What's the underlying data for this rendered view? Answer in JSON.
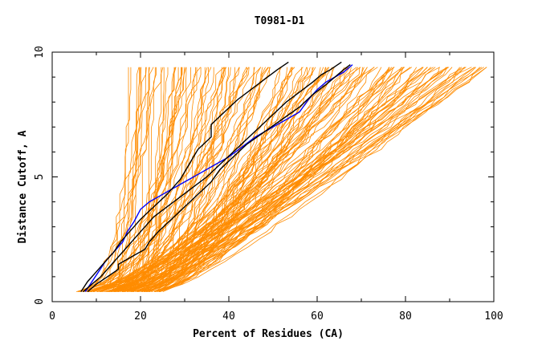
{
  "chart_data": {
    "type": "line",
    "title": "T0981-D1",
    "xlabel": "Percent of Residues (CA)",
    "ylabel": "Distance Cutoff, A",
    "xlim": [
      0,
      100
    ],
    "ylim": [
      0,
      10
    ],
    "x_ticks": [
      "0",
      "20",
      "40",
      "60",
      "80",
      "100"
    ],
    "y_ticks": [
      "0",
      "5",
      "10"
    ],
    "grid": false,
    "colors": {
      "background_models": "#ff8c00",
      "highlight_blue": "#0000ff",
      "highlight_black": "#000000"
    },
    "background_curve_count": 150,
    "series": [
      {
        "color": "#0000ff",
        "x": [
          7.5,
          9,
          10.5,
          12,
          14,
          16,
          17,
          18.5,
          20,
          22,
          25,
          28,
          31,
          34,
          37,
          40,
          43,
          46,
          50,
          53,
          56,
          58,
          60,
          62,
          64,
          66,
          68
        ],
        "y": [
          0.4,
          0.8,
          1.2,
          1.6,
          2.0,
          2.4,
          2.8,
          3.2,
          3.7,
          4.0,
          4.3,
          4.6,
          4.9,
          5.2,
          5.5,
          5.8,
          6.2,
          6.6,
          7.0,
          7.3,
          7.6,
          8.1,
          8.5,
          8.8,
          9.0,
          9.2,
          9.5
        ]
      },
      {
        "color": "#000000",
        "x": [
          8,
          10,
          12.5,
          15,
          15,
          17,
          19,
          21,
          22,
          24,
          27,
          30,
          33,
          36,
          38,
          41,
          44,
          48,
          52,
          56,
          59,
          62,
          64,
          66,
          67.5
        ],
        "y": [
          0.4,
          0.7,
          1.0,
          1.3,
          1.5,
          1.7,
          1.9,
          2.1,
          2.4,
          2.8,
          3.3,
          3.8,
          4.3,
          4.8,
          5.3,
          5.8,
          6.3,
          6.8,
          7.3,
          7.8,
          8.3,
          8.7,
          9.0,
          9.3,
          9.5
        ]
      },
      {
        "color": "#000000",
        "x": [
          6.5,
          8,
          10,
          12,
          14,
          15.5,
          16,
          18,
          20,
          23,
          26,
          29,
          31,
          33,
          36,
          36,
          39,
          42,
          45,
          48,
          51,
          53.5
        ],
        "y": [
          0.4,
          0.8,
          1.2,
          1.6,
          2.0,
          2.4,
          2.5,
          2.9,
          3.3,
          3.8,
          4.3,
          4.9,
          5.5,
          6.1,
          6.6,
          7.1,
          7.6,
          8.1,
          8.5,
          8.9,
          9.3,
          9.6
        ]
      },
      {
        "color": "#000000",
        "x": [
          7,
          9,
          11,
          13,
          15,
          17,
          19,
          21,
          23,
          26,
          29,
          32,
          35,
          38,
          41,
          44,
          47,
          50,
          53,
          56,
          59,
          61,
          63,
          65.5
        ],
        "y": [
          0.4,
          0.7,
          1.0,
          1.4,
          1.8,
          2.2,
          2.6,
          3.0,
          3.4,
          3.8,
          4.2,
          4.6,
          5.0,
          5.5,
          6.0,
          6.5,
          7.0,
          7.5,
          8.0,
          8.4,
          8.8,
          9.1,
          9.3,
          9.6
        ]
      }
    ]
  }
}
